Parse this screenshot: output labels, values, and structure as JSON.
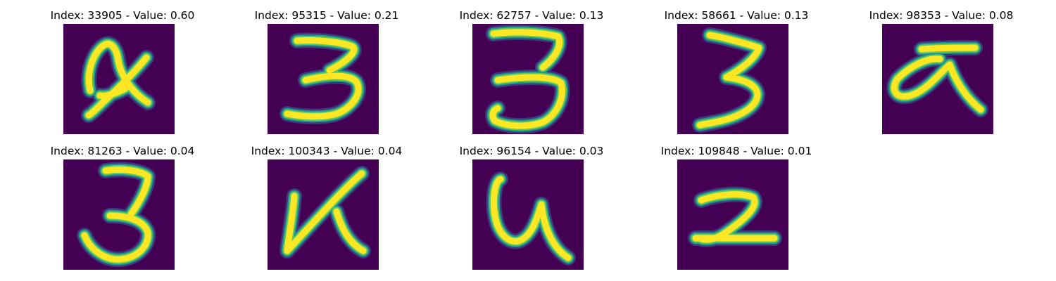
{
  "background_color": "#440154",
  "stroke_colors": {
    "core": "#fde725",
    "edge_mid": "#5ec962",
    "edge_outer": "#21918c",
    "halo": "#3b528b"
  },
  "panels": [
    {
      "index": 33905,
      "value": "0.60",
      "title": "Index: 33905 - Value: 0.60",
      "glyph": "x-shape"
    },
    {
      "index": 95315,
      "value": "0.21",
      "title": "Index: 95315 - Value: 0.21",
      "glyph": "three-wide"
    },
    {
      "index": 62757,
      "value": "0.13",
      "title": "Index: 62757 - Value: 0.13",
      "glyph": "three-tall"
    },
    {
      "index": 58661,
      "value": "0.13",
      "title": "Index: 58661 - Value: 0.13",
      "glyph": "three-slanted"
    },
    {
      "index": 98353,
      "value": "0.08",
      "title": "Index: 98353 - Value: 0.08",
      "glyph": "a-with-bar"
    },
    {
      "index": 81263,
      "value": "0.04",
      "title": "Index: 81263 - Value: 0.04",
      "glyph": "three-loose"
    },
    {
      "index": 100343,
      "value": "0.04",
      "title": "Index: 100343 - Value: 0.04",
      "glyph": "k-shape"
    },
    {
      "index": 96154,
      "value": "0.03",
      "title": "Index: 96154 - Value: 0.03",
      "glyph": "u-shape"
    },
    {
      "index": 109848,
      "value": "0.01",
      "title": "Index: 109848 - Value: 0.01",
      "glyph": "two-shape"
    }
  ]
}
